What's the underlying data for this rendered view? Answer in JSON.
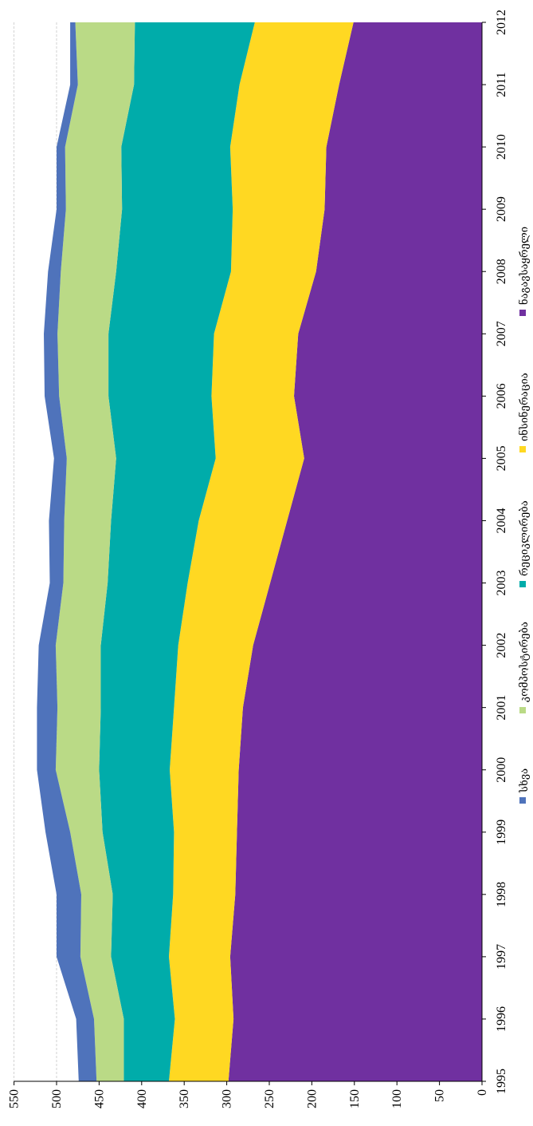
{
  "chart_data": {
    "type": "area",
    "stacked": true,
    "orientation": "rotated-90-clockwise",
    "title": "",
    "xlabel": "",
    "ylabel": "",
    "x": [
      "1995",
      "1996",
      "1997",
      "1998",
      "1999",
      "2000",
      "2001",
      "2002",
      "2003",
      "2004",
      "2005",
      "2006",
      "2007",
      "2008",
      "2009",
      "2010",
      "2011",
      "2012"
    ],
    "ylim": [
      0,
      550
    ],
    "yticks": [
      0,
      50,
      100,
      150,
      200,
      250,
      300,
      350,
      400,
      450,
      500,
      550
    ],
    "grid": true,
    "legend_position": "right",
    "series": [
      {
        "name": "ნაგავსაყრელი",
        "color": "#7030A0",
        "values": [
          298,
          292,
          296,
          290,
          288,
          286,
          281,
          269,
          249,
          229,
          209,
          221,
          216,
          195,
          185,
          183,
          168,
          151
        ]
      },
      {
        "name": "ინსინერაცია",
        "color": "#FFD822",
        "values": [
          70,
          69,
          72,
          73,
          74,
          81,
          81,
          88,
          97,
          104,
          104,
          97,
          99,
          100,
          108,
          113,
          117,
          116
        ]
      },
      {
        "name": "რეციკლირება",
        "color": "#00ACAA",
        "values": [
          53,
          60,
          68,
          71,
          84,
          83,
          86,
          91,
          94,
          103,
          117,
          121,
          124,
          135,
          130,
          128,
          124,
          141
        ]
      },
      {
        "name": "კომპოსტირება",
        "color": "#BADA86",
        "values": [
          32,
          35,
          36,
          37,
          38,
          51,
          51,
          53,
          52,
          55,
          58,
          58,
          60,
          65,
          66,
          66,
          66,
          70
        ]
      },
      {
        "name": "სხვა",
        "color": "#4F73BB",
        "values": [
          21,
          21,
          28,
          29,
          29,
          22,
          24,
          20,
          16,
          18,
          15,
          17,
          16,
          15,
          11,
          10,
          9,
          6
        ]
      }
    ]
  }
}
